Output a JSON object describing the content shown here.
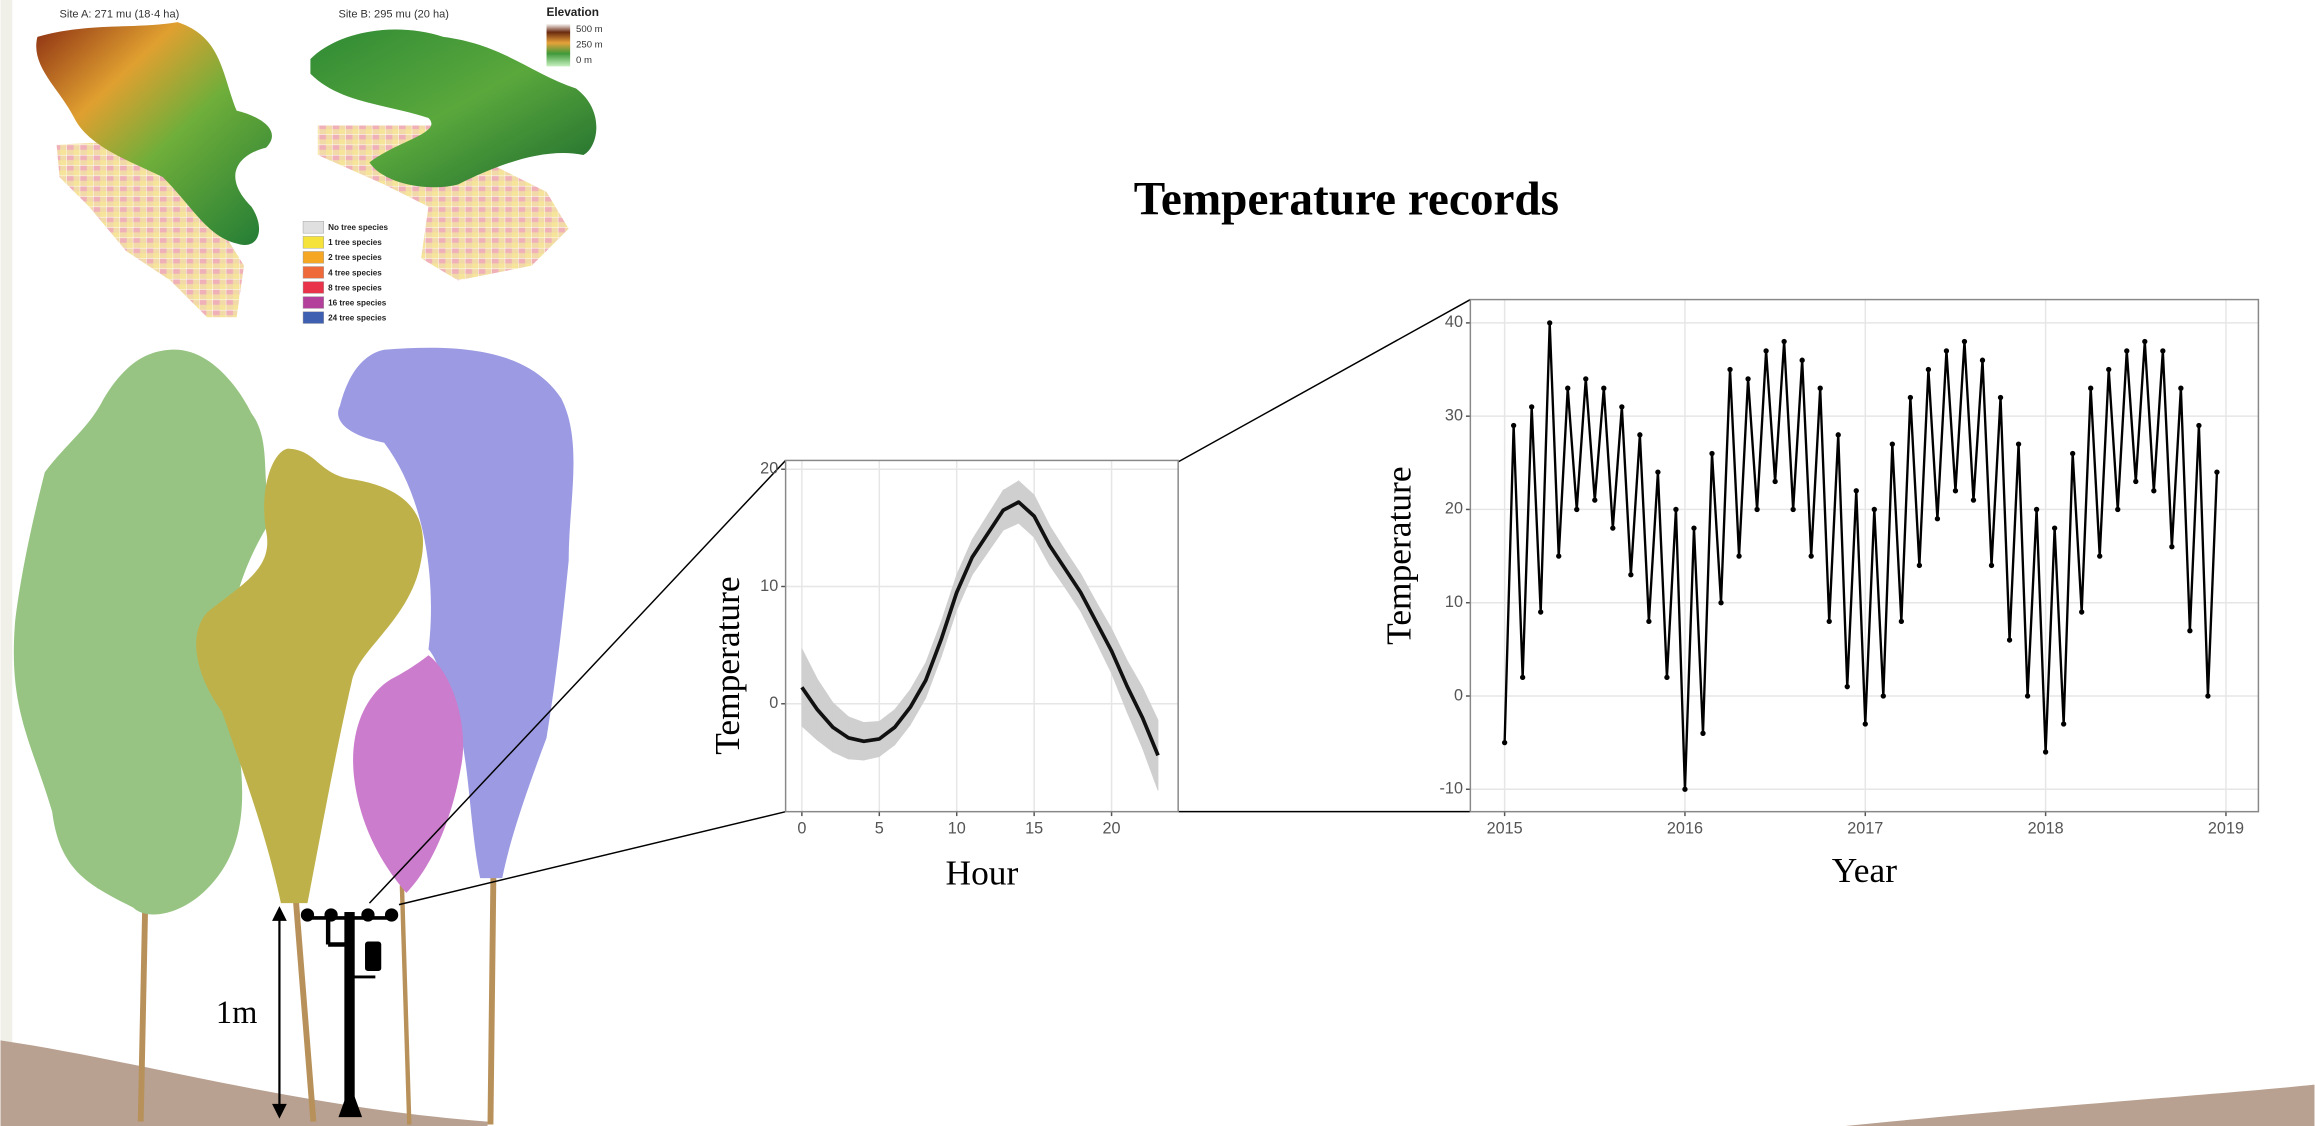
{
  "title": "Temperature records",
  "height_label": "1m",
  "map": {
    "site_a": "Site A: 271 mu (18·4 ha)",
    "site_b": "Site B: 295 mu (20 ha)",
    "elevation_title": "Elevation",
    "elevation_labels": [
      "500 m",
      "250 m",
      "0 m"
    ],
    "species_legend": [
      {
        "label": "No tree species",
        "color": "#e0e0e0"
      },
      {
        "label": "1 tree species",
        "color": "#f5e23a"
      },
      {
        "label": "2 tree species",
        "color": "#f5a623"
      },
      {
        "label": "4 tree species",
        "color": "#ef6a3a"
      },
      {
        "label": "8 tree species",
        "color": "#e8334a"
      },
      {
        "label": "16 tree species",
        "color": "#b3409a"
      },
      {
        "label": "24 tree species",
        "color": "#3f5fb0"
      }
    ]
  },
  "chart_data": [
    {
      "type": "line",
      "xlabel": "Hour",
      "ylabel": "Temperature",
      "color": "#111111",
      "band_color": "#cfcfcf",
      "x": [
        0,
        1,
        2,
        3,
        4,
        5,
        6,
        7,
        8,
        9,
        10,
        11,
        12,
        13,
        14,
        15,
        16,
        17,
        18,
        19,
        20,
        21,
        22,
        23
      ],
      "values": [
        1.4,
        -0.5,
        -2,
        -2.9,
        -3.2,
        -3,
        -2,
        -0.3,
        2,
        5.5,
        9.5,
        12.5,
        14.5,
        16.5,
        17.2,
        16,
        13.5,
        11.5,
        9.5,
        7,
        4.5,
        1.5,
        -1.2,
        -4.4
      ],
      "upper": [
        4.7,
        2.1,
        0.1,
        -1.1,
        -1.6,
        -1.5,
        -0.5,
        1.2,
        3.5,
        7,
        11,
        14,
        16.1,
        18.2,
        19,
        17.8,
        15.2,
        13.1,
        11.1,
        8.7,
        6.4,
        3.7,
        1.4,
        -1.4
      ],
      "lower": [
        -1.9,
        -3.1,
        -4.1,
        -4.7,
        -4.8,
        -4.5,
        -3.5,
        -1.8,
        0.5,
        4,
        8,
        11,
        12.9,
        14.8,
        15.4,
        14.2,
        11.8,
        9.9,
        7.9,
        5.3,
        2.6,
        -0.7,
        -3.8,
        -7.4
      ],
      "xlim": [
        -1.05,
        24.3
      ],
      "ylim": [
        -9.2,
        20.75
      ],
      "xticks": [
        0,
        5,
        10,
        15,
        20
      ],
      "yticks": [
        0,
        10,
        20
      ],
      "grid": true,
      "markers": false
    },
    {
      "type": "line",
      "xlabel": "Year",
      "ylabel": "Temperature",
      "color": "#000000",
      "x": [
        2015,
        2015.05,
        2015.1,
        2015.15,
        2015.2,
        2015.25,
        2015.3,
        2015.35,
        2015.4,
        2015.45,
        2015.5,
        2015.55,
        2015.6,
        2015.65,
        2015.7,
        2015.75,
        2015.8,
        2015.85,
        2015.9,
        2015.95,
        2016,
        2016.05,
        2016.1,
        2016.15,
        2016.2,
        2016.25,
        2016.3,
        2016.35,
        2016.4,
        2016.45,
        2016.5,
        2016.55,
        2016.6,
        2016.65,
        2016.7,
        2016.75,
        2016.8,
        2016.85,
        2016.9,
        2016.95,
        2017,
        2017.05,
        2017.1,
        2017.15,
        2017.2,
        2017.25,
        2017.3,
        2017.35,
        2017.4,
        2017.45,
        2017.5,
        2017.55,
        2017.6,
        2017.65,
        2017.7,
        2017.75,
        2017.8,
        2017.85,
        2017.9,
        2017.95,
        2018,
        2018.05,
        2018.1,
        2018.15,
        2018.2,
        2018.25,
        2018.3,
        2018.35,
        2018.4,
        2018.45,
        2018.5,
        2018.55,
        2018.6,
        2018.65,
        2018.7,
        2018.75,
        2018.8,
        2018.85,
        2018.9,
        2018.95
      ],
      "values": [
        -5,
        29,
        2,
        31,
        9,
        40,
        15,
        33,
        20,
        34,
        21,
        33,
        18,
        31,
        13,
        28,
        8,
        24,
        2,
        20,
        -10,
        18,
        -4,
        26,
        10,
        35,
        15,
        34,
        20,
        37,
        23,
        38,
        20,
        36,
        15,
        33,
        8,
        28,
        1,
        22,
        -3,
        20,
        0,
        27,
        8,
        32,
        14,
        35,
        19,
        37,
        22,
        38,
        21,
        36,
        14,
        32,
        6,
        27,
        0,
        20,
        -6,
        18,
        -3,
        26,
        9,
        33,
        15,
        35,
        20,
        37,
        23,
        38,
        22,
        37,
        16,
        33,
        7,
        29,
        0,
        24
      ],
      "xlim": [
        2014.81,
        2019.18
      ],
      "ylim": [
        -12.4,
        42.5
      ],
      "xticks": [
        2015,
        2016,
        2017,
        2018,
        2019
      ],
      "yticks": [
        -10,
        0,
        10,
        20,
        30,
        40
      ],
      "grid": true,
      "markers": true
    }
  ]
}
